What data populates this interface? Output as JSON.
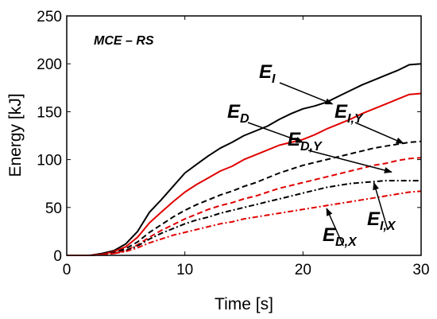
{
  "chart_data": {
    "type": "line",
    "title": "MCE – RS",
    "xlabel": "Time [s]",
    "ylabel": "Energy [kJ]",
    "xlim": [
      0,
      30
    ],
    "ylim": [
      0,
      250
    ],
    "xticks": [
      0,
      10,
      20,
      30
    ],
    "yticks": [
      0,
      50,
      100,
      150,
      200,
      250
    ],
    "xtick_labels": [
      "0",
      "10",
      "20",
      "30"
    ],
    "ytick_labels": [
      "0",
      "50",
      "100",
      "150",
      "200",
      "250"
    ],
    "grid": false,
    "legend": "none",
    "series": [
      {
        "name": "E_I",
        "color": "#000000",
        "style": "solid",
        "x": [
          0,
          1,
          2,
          3,
          4,
          5,
          6,
          7,
          8,
          9,
          10,
          11,
          12,
          13,
          14,
          15,
          16,
          17,
          18,
          19,
          20,
          21,
          22,
          23,
          24,
          25,
          26,
          27,
          28,
          29,
          30
        ],
        "y": [
          0,
          0,
          0,
          2,
          5,
          12,
          25,
          45,
          58,
          72,
          86,
          95,
          104,
          112,
          118,
          125,
          130,
          135,
          142,
          148,
          153,
          156,
          160,
          166,
          172,
          178,
          183,
          188,
          193,
          199,
          200
        ]
      },
      {
        "name": "E_D",
        "color": "#e00000",
        "style": "solid",
        "x": [
          0,
          1,
          2,
          3,
          4,
          5,
          6,
          7,
          8,
          9,
          10,
          11,
          12,
          13,
          14,
          15,
          16,
          17,
          18,
          19,
          20,
          21,
          22,
          23,
          24,
          25,
          26,
          27,
          28,
          29,
          30
        ],
        "y": [
          0,
          0,
          0,
          1,
          4,
          9,
          19,
          34,
          45,
          56,
          66,
          74,
          81,
          88,
          93,
          100,
          105,
          110,
          115,
          118,
          121,
          126,
          132,
          137,
          142,
          148,
          153,
          158,
          163,
          168,
          169
        ]
      },
      {
        "name": "E_I,Y",
        "color": "#000000",
        "style": "dashed",
        "x": [
          0,
          1,
          2,
          3,
          4,
          5,
          6,
          7,
          8,
          9,
          10,
          11,
          12,
          13,
          14,
          15,
          16,
          17,
          18,
          19,
          20,
          21,
          22,
          23,
          24,
          25,
          26,
          27,
          28,
          29,
          30
        ],
        "y": [
          0,
          0,
          0,
          1,
          3,
          7,
          14,
          24,
          32,
          40,
          47,
          53,
          58,
          63,
          67,
          72,
          76,
          81,
          86,
          90,
          94,
          97,
          100,
          103,
          106,
          109,
          112,
          114,
          116,
          118,
          119
        ]
      },
      {
        "name": "E_D,Y",
        "color": "#e00000",
        "style": "dashed",
        "x": [
          0,
          1,
          2,
          3,
          4,
          5,
          6,
          7,
          8,
          9,
          10,
          11,
          12,
          13,
          14,
          15,
          16,
          17,
          18,
          19,
          20,
          21,
          22,
          23,
          24,
          25,
          26,
          27,
          28,
          29,
          30
        ],
        "y": [
          0,
          0,
          0,
          1,
          2,
          5,
          11,
          19,
          26,
          32,
          38,
          43,
          48,
          52,
          55,
          59,
          62,
          66,
          70,
          73,
          76,
          79,
          82,
          85,
          88,
          91,
          94,
          96,
          99,
          101,
          102
        ]
      },
      {
        "name": "E_I,X",
        "color": "#000000",
        "style": "dashdot",
        "x": [
          0,
          1,
          2,
          3,
          4,
          5,
          6,
          7,
          8,
          9,
          10,
          11,
          12,
          13,
          14,
          15,
          16,
          17,
          18,
          19,
          20,
          21,
          22,
          23,
          24,
          25,
          26,
          27,
          28,
          29,
          30
        ],
        "y": [
          0,
          0,
          0,
          1,
          2,
          5,
          10,
          17,
          23,
          28,
          33,
          37,
          40,
          44,
          47,
          50,
          53,
          56,
          59,
          62,
          65,
          68,
          71,
          73,
          75,
          76,
          77,
          78,
          78,
          78,
          78
        ]
      },
      {
        "name": "E_D,X",
        "color": "#e00000",
        "style": "dashdot",
        "x": [
          0,
          1,
          2,
          3,
          4,
          5,
          6,
          7,
          8,
          9,
          10,
          11,
          12,
          13,
          14,
          15,
          16,
          17,
          18,
          19,
          20,
          21,
          22,
          23,
          24,
          25,
          26,
          27,
          28,
          29,
          30
        ],
        "y": [
          0,
          0,
          0,
          1,
          2,
          4,
          8,
          13,
          17,
          21,
          24,
          27,
          30,
          33,
          35,
          38,
          40,
          42,
          44,
          46,
          48,
          50,
          52,
          54,
          56,
          58,
          60,
          62,
          64,
          66,
          67
        ]
      }
    ],
    "annotations": [
      {
        "main": "E",
        "sub": "I",
        "target_x": 22.5,
        "target_y": 158
      },
      {
        "main": "E",
        "sub": "D",
        "target_x": 20,
        "target_y": 118
      },
      {
        "main": "E",
        "sub": "I,Y",
        "target_x": 28.5,
        "target_y": 117
      },
      {
        "main": "E",
        "sub": "D,Y",
        "target_x": 27.5,
        "target_y": 87
      },
      {
        "main": "E",
        "sub": "I,X",
        "target_x": 26,
        "target_y": 76
      },
      {
        "main": "E",
        "sub": "D,X",
        "target_x": 22,
        "target_y": 49
      }
    ]
  }
}
